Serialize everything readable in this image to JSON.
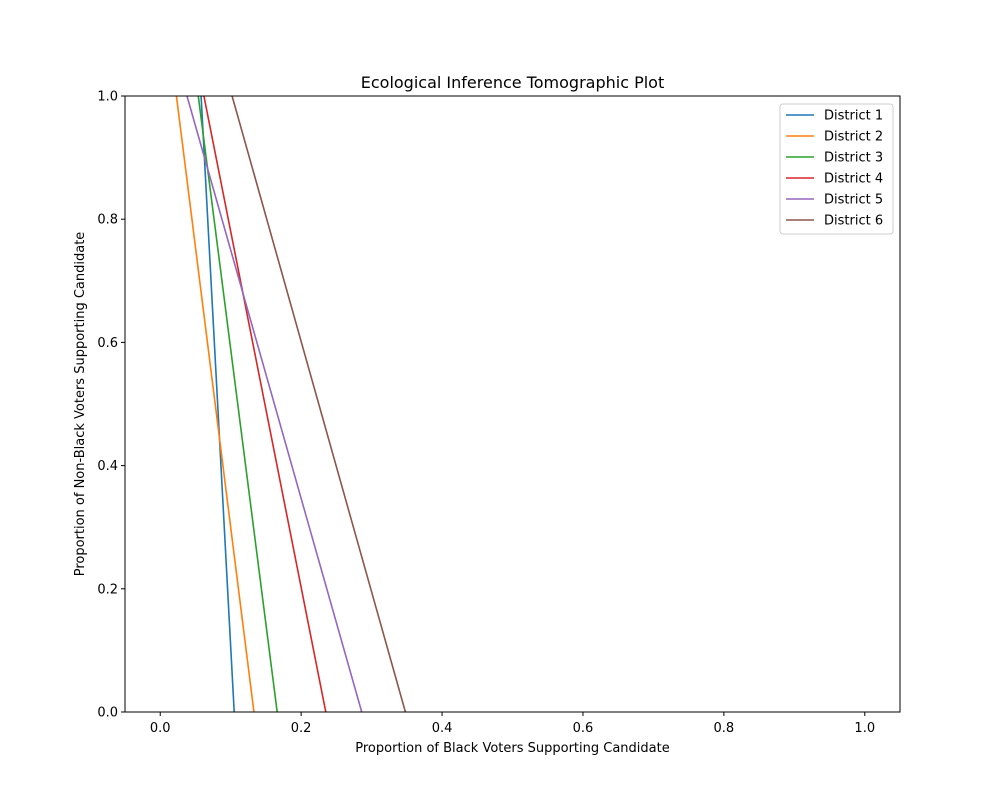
{
  "chart_data": {
    "type": "line",
    "title": "Ecological Inference Tomographic Plot",
    "xlabel": "Proportion of Black Voters Supporting Candidate",
    "ylabel": "Proportion of Non-Black Voters Supporting Candidate",
    "xlim": [
      -0.05,
      1.05
    ],
    "ylim": [
      0.0,
      1.0
    ],
    "xticks": [
      0.0,
      0.2,
      0.4,
      0.6,
      0.8,
      1.0
    ],
    "yticks": [
      0.0,
      0.2,
      0.4,
      0.6,
      0.8,
      1.0
    ],
    "xtick_labels": [
      "0.0",
      "0.2",
      "0.4",
      "0.6",
      "0.8",
      "1.0"
    ],
    "ytick_labels": [
      "0.0",
      "0.2",
      "0.4",
      "0.6",
      "0.8",
      "1.0"
    ],
    "grid": false,
    "legend_position": "top-right",
    "series": [
      {
        "name": "District 1",
        "color": "#1f77b4",
        "x": [
          0.058,
          0.105
        ],
        "y": [
          1.0,
          0.0
        ]
      },
      {
        "name": "District 2",
        "color": "#ff7f0e",
        "x": [
          0.023,
          0.133
        ],
        "y": [
          1.0,
          0.0
        ]
      },
      {
        "name": "District 3",
        "color": "#2ca02c",
        "x": [
          0.054,
          0.166
        ],
        "y": [
          1.0,
          0.0
        ]
      },
      {
        "name": "District 4",
        "color": "#d62728",
        "x": [
          0.062,
          0.235
        ],
        "y": [
          1.0,
          0.0
        ]
      },
      {
        "name": "District 5",
        "color": "#9467bd",
        "x": [
          0.038,
          0.286
        ],
        "y": [
          1.0,
          0.0
        ]
      },
      {
        "name": "District 6",
        "color": "#8c564b",
        "x": [
          0.102,
          0.348
        ],
        "y": [
          1.0,
          0.0
        ]
      }
    ]
  }
}
